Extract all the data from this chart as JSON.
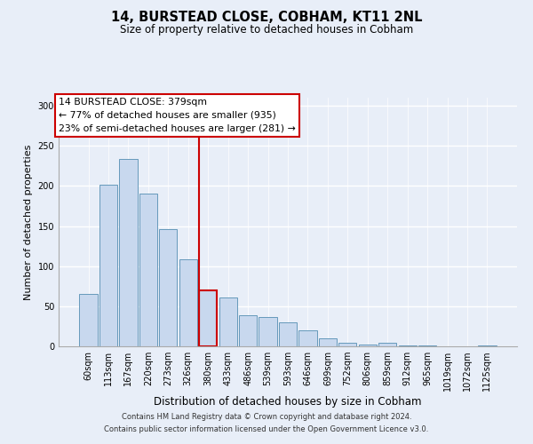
{
  "title": "14, BURSTEAD CLOSE, COBHAM, KT11 2NL",
  "subtitle": "Size of property relative to detached houses in Cobham",
  "xlabel": "Distribution of detached houses by size in Cobham",
  "ylabel": "Number of detached properties",
  "categories": [
    "60sqm",
    "113sqm",
    "167sqm",
    "220sqm",
    "273sqm",
    "326sqm",
    "380sqm",
    "433sqm",
    "486sqm",
    "539sqm",
    "593sqm",
    "646sqm",
    "699sqm",
    "752sqm",
    "806sqm",
    "859sqm",
    "912sqm",
    "965sqm",
    "1019sqm",
    "1072sqm",
    "1125sqm"
  ],
  "values": [
    65,
    201,
    234,
    190,
    146,
    109,
    70,
    61,
    39,
    37,
    30,
    20,
    10,
    4,
    2,
    4,
    1,
    1,
    0,
    0,
    1
  ],
  "bar_color": "#c8d8ee",
  "bar_edge_color": "#6699bb",
  "highlight_bar_index": 6,
  "highlight_line_color": "#cc0000",
  "annotation_line1": "14 BURSTEAD CLOSE: 379sqm",
  "annotation_line2": "← 77% of detached houses are smaller (935)",
  "annotation_line3": "23% of semi-detached houses are larger (281) →",
  "annotation_box_color": "#ffffff",
  "annotation_box_edge_color": "#cc0000",
  "ylim": [
    0,
    310
  ],
  "yticks": [
    0,
    50,
    100,
    150,
    200,
    250,
    300
  ],
  "footer_line1": "Contains HM Land Registry data © Crown copyright and database right 2024.",
  "footer_line2": "Contains public sector information licensed under the Open Government Licence v3.0.",
  "bg_color": "#e8eef8"
}
